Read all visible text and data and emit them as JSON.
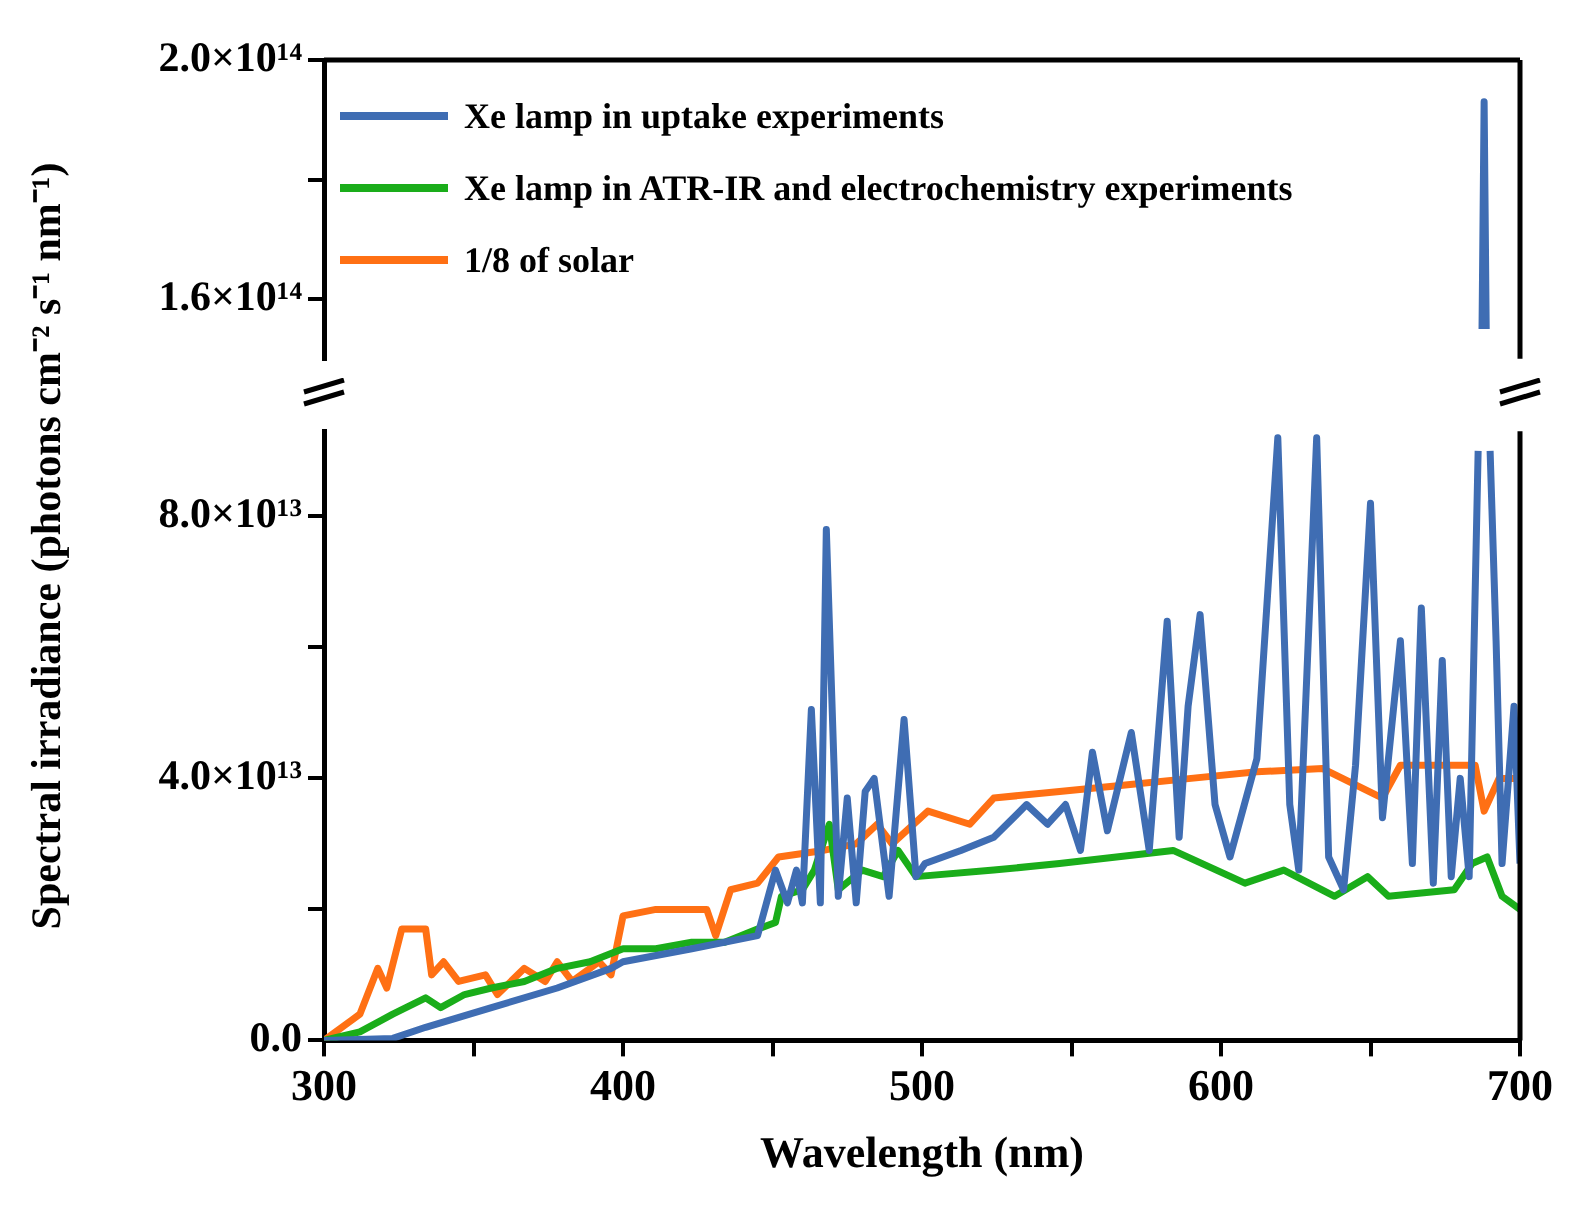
{
  "chart_data": [
    {
      "type": "line",
      "xlim": [
        300,
        700
      ],
      "ylim": [
        150000000000000.0,
        200000000000000.0
      ],
      "yticks": [
        {
          "value": 160000000000000.0,
          "label": "1.6×10¹⁴"
        },
        {
          "value": 180000000000000.0,
          "label": null
        },
        {
          "value": 200000000000000.0,
          "label": "2.0×10¹⁴"
        }
      ],
      "tick_labels": "y",
      "grid": false,
      "series": [
        {
          "color": "#3f6db3",
          "x": [
            687.3,
            688,
            688.7
          ],
          "values": [
            155000000000000.0,
            193000000000000.0,
            155000000000000.0
          ]
        }
      ]
    },
    {
      "type": "line",
      "xlabel": "Wavelength (nm)",
      "ylabel": "Spectral irradiance (photons cm⁻² s⁻¹ nm⁻¹)",
      "xlim": [
        300,
        700
      ],
      "xticks": [
        300,
        {
          "value": 350,
          "label": null
        },
        400,
        {
          "value": 450,
          "label": null
        },
        500,
        {
          "value": 550,
          "label": null
        },
        600,
        {
          "value": 650,
          "label": null
        },
        700
      ],
      "ylim": [
        0,
        93000000000000.0
      ],
      "yticks": [
        {
          "value": 0,
          "label": "0.0"
        },
        {
          "value": 20000000000000.0,
          "label": null
        },
        {
          "value": 40000000000000.0,
          "label": "4.0×10¹³"
        },
        {
          "value": 60000000000000.0,
          "label": null
        },
        {
          "value": 80000000000000.0,
          "label": "8.0×10¹³"
        }
      ],
      "legend": "top left",
      "grid": false,
      "series": [
        {
          "name": "Xe lamp in uptake experiments",
          "color": "#3f6db3",
          "x": [
            300,
            323,
            334,
            356,
            378,
            396,
            400,
            423,
            445,
            451,
            455,
            458,
            460,
            463,
            466,
            468,
            472,
            475,
            478,
            481,
            484,
            489,
            494,
            498,
            501,
            513,
            524,
            535,
            542,
            548,
            553,
            557,
            562,
            570,
            576,
            582,
            586,
            589,
            593,
            598,
            603,
            612,
            619,
            623,
            626,
            632,
            636,
            641,
            645,
            650,
            654,
            660,
            664,
            667,
            671,
            674,
            677,
            680,
            683,
            686,
            688,
            690,
            692,
            694,
            698,
            700
          ],
          "values": [
            0,
            300000000000.0,
            2000000000000.0,
            5000000000000.0,
            8000000000000.0,
            11000000000000.0,
            12000000000000.0,
            14000000000000.0,
            16000000000000.0,
            26000000000000.0,
            21000000000000.0,
            26000000000000.0,
            21000000000000.0,
            50500000000000.0,
            21000000000000.0,
            78000000000000.0,
            22000000000000.0,
            37000000000000.0,
            21000000000000.0,
            38000000000000.0,
            40000000000000.0,
            22000000000000.0,
            49000000000000.0,
            25000000000000.0,
            27000000000000.0,
            29000000000000.0,
            31000000000000.0,
            36000000000000.0,
            33000000000000.0,
            36000000000000.0,
            29000000000000.0,
            44000000000000.0,
            32000000000000.0,
            47000000000000.0,
            29000000000000.0,
            64000000000000.0,
            31000000000000.0,
            51000000000000.0,
            65000000000000.0,
            36000000000000.0,
            28000000000000.0,
            43000000000000.0,
            92000000000000.0,
            36000000000000.0,
            26000000000000.0,
            92000000000000.0,
            28000000000000.0,
            23000000000000.0,
            42000000000000.0,
            82000000000000.0,
            34000000000000.0,
            61000000000000.0,
            27000000000000.0,
            66000000000000.0,
            24000000000000.0,
            58000000000000.0,
            25000000000000.0,
            40000000000000.0,
            25000000000000.0,
            90000000000000.0,
            null,
            90000000000000.0,
            61000000000000.0,
            27000000000000.0,
            51000000000000.0,
            27000000000000.0
          ]
        },
        {
          "name": "Xe lamp in ATR-IR and electrochemistry experiments",
          "color": "#1aad1a",
          "x": [
            300,
            312,
            323,
            334,
            339,
            347,
            356,
            367,
            378,
            389,
            400,
            411,
            423,
            434,
            445,
            451,
            453,
            460,
            464,
            469,
            472,
            480,
            487,
            492,
            498,
            524,
            546,
            584,
            608,
            621,
            638,
            649,
            656,
            678,
            684,
            689,
            694,
            700
          ],
          "values": [
            0,
            1300000000000.0,
            4000000000000.0,
            6500000000000.0,
            5000000000000.0,
            7000000000000.0,
            8000000000000.0,
            9000000000000.0,
            11000000000000.0,
            12000000000000.0,
            14000000000000.0,
            14000000000000.0,
            15000000000000.0,
            15000000000000.0,
            17000000000000.0,
            18000000000000.0,
            22000000000000.0,
            23000000000000.0,
            26000000000000.0,
            33000000000000.0,
            23000000000000.0,
            26000000000000.0,
            25000000000000.0,
            29000000000000.0,
            25000000000000.0,
            26000000000000.0,
            27000000000000.0,
            29000000000000.0,
            24000000000000.0,
            26000000000000.0,
            22000000000000.0,
            25000000000000.0,
            22000000000000.0,
            23000000000000.0,
            27000000000000.0,
            28000000000000.0,
            22000000000000.0,
            20000000000000.0
          ]
        },
        {
          "name": "1/8 of solar",
          "color": "#ff7014",
          "x": [
            300,
            312,
            318,
            321,
            326,
            334,
            336,
            340,
            345,
            354,
            358,
            367,
            374,
            378,
            383,
            392,
            396,
            400,
            411,
            423,
            428,
            431,
            436,
            445,
            452,
            467,
            478,
            485,
            490,
            502,
            516,
            524,
            546,
            568,
            590,
            612,
            634,
            654,
            660,
            685,
            688,
            693,
            700
          ],
          "values": [
            0,
            4000000000000.0,
            11000000000000.0,
            8000000000000.0,
            17000000000000.0,
            17000000000000.0,
            10000000000000.0,
            12000000000000.0,
            9000000000000.0,
            10000000000000.0,
            7000000000000.0,
            11000000000000.0,
            9000000000000.0,
            12000000000000.0,
            9000000000000.0,
            12000000000000.0,
            10000000000000.0,
            19000000000000.0,
            20000000000000.0,
            20000000000000.0,
            20000000000000.0,
            16000000000000.0,
            23000000000000.0,
            24000000000000.0,
            28000000000000.0,
            29000000000000.0,
            30000000000000.0,
            33000000000000.0,
            30000000000000.0,
            35000000000000.0,
            33000000000000.0,
            37000000000000.0,
            38000000000000.0,
            39000000000000.0,
            40000000000000.0,
            41000000000000.0,
            41500000000000.0,
            37000000000000.0,
            42000000000000.0,
            42000000000000.0,
            35000000000000.0,
            40000000000000.0,
            40000000000000.0
          ]
        }
      ]
    }
  ]
}
